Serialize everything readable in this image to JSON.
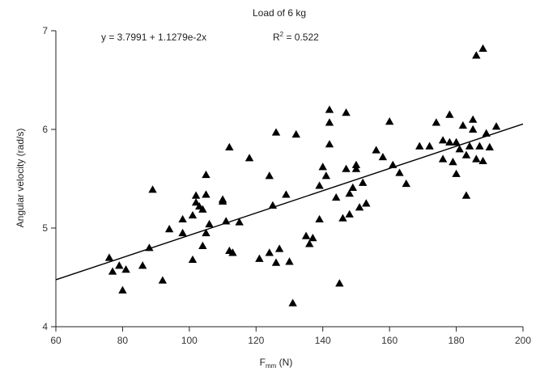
{
  "chart_data": {
    "type": "scatter",
    "title": "Load of 6 kg",
    "equation": "y = 3.7991 + 1.1279e-2x",
    "r2_label": "R",
    "r2_superscript": "2",
    "r2_value": " = 0.522",
    "xlabel_main": "F",
    "xlabel_sub": "mm",
    "xlabel_unit": " (N)",
    "ylabel": "Angular velocity (rad/s)",
    "xlim": [
      60,
      200
    ],
    "ylim": [
      4,
      7
    ],
    "xticks": [
      60,
      80,
      100,
      120,
      140,
      160,
      180,
      200
    ],
    "yticks": [
      4,
      5,
      6,
      7
    ],
    "marker": "triangle",
    "fit": {
      "intercept": 3.7991,
      "slope": 0.011279
    },
    "points": [
      [
        76,
        4.7
      ],
      [
        77,
        4.56
      ],
      [
        79,
        4.62
      ],
      [
        80,
        4.37
      ],
      [
        81,
        4.58
      ],
      [
        86,
        4.62
      ],
      [
        88,
        4.8
      ],
      [
        89,
        5.39
      ],
      [
        92,
        4.47
      ],
      [
        94,
        4.99
      ],
      [
        98,
        4.95
      ],
      [
        98,
        5.09
      ],
      [
        101,
        4.68
      ],
      [
        101,
        5.13
      ],
      [
        102,
        5.26
      ],
      [
        102,
        5.33
      ],
      [
        103,
        5.22
      ],
      [
        104,
        4.82
      ],
      [
        104,
        5.19
      ],
      [
        105,
        5.34
      ],
      [
        105,
        5.54
      ],
      [
        105,
        4.95
      ],
      [
        106,
        5.04
      ],
      [
        110,
        5.29
      ],
      [
        110,
        5.27
      ],
      [
        111,
        5.07
      ],
      [
        112,
        5.82
      ],
      [
        112,
        4.77
      ],
      [
        113,
        4.75
      ],
      [
        115,
        5.06
      ],
      [
        118,
        5.71
      ],
      [
        121,
        4.69
      ],
      [
        124,
        5.53
      ],
      [
        124,
        4.75
      ],
      [
        125,
        5.23
      ],
      [
        126,
        5.97
      ],
      [
        126,
        4.65
      ],
      [
        127,
        4.79
      ],
      [
        129,
        5.34
      ],
      [
        130,
        4.66
      ],
      [
        131,
        4.24
      ],
      [
        132,
        5.95
      ],
      [
        135,
        4.92
      ],
      [
        136,
        4.84
      ],
      [
        137,
        4.9
      ],
      [
        139,
        5.09
      ],
      [
        139,
        5.43
      ],
      [
        140,
        5.62
      ],
      [
        141,
        5.53
      ],
      [
        142,
        5.85
      ],
      [
        142,
        6.07
      ],
      [
        142,
        6.2
      ],
      [
        144,
        5.31
      ],
      [
        145,
        4.44
      ],
      [
        146,
        5.1
      ],
      [
        147,
        6.17
      ],
      [
        147,
        5.6
      ],
      [
        148,
        5.35
      ],
      [
        148,
        5.14
      ],
      [
        149,
        5.41
      ],
      [
        150,
        5.6
      ],
      [
        150,
        5.64
      ],
      [
        151,
        5.21
      ],
      [
        152,
        5.46
      ],
      [
        153,
        5.25
      ],
      [
        156,
        5.79
      ],
      [
        158,
        5.72
      ],
      [
        160,
        6.08
      ],
      [
        161,
        5.64
      ],
      [
        163,
        5.56
      ],
      [
        165,
        5.45
      ],
      [
        169,
        5.83
      ],
      [
        172,
        5.83
      ],
      [
        174,
        6.07
      ],
      [
        176,
        5.7
      ],
      [
        176,
        5.89
      ],
      [
        178,
        6.15
      ],
      [
        178,
        5.87
      ],
      [
        179,
        5.67
      ],
      [
        180,
        5.87
      ],
      [
        180,
        5.55
      ],
      [
        181,
        5.8
      ],
      [
        182,
        6.04
      ],
      [
        183,
        5.33
      ],
      [
        183,
        5.74
      ],
      [
        184,
        5.83
      ],
      [
        185,
        6.0
      ],
      [
        185,
        6.1
      ],
      [
        186,
        5.7
      ],
      [
        186,
        6.75
      ],
      [
        187,
        5.83
      ],
      [
        188,
        5.68
      ],
      [
        188,
        6.82
      ],
      [
        189,
        5.96
      ],
      [
        190,
        5.82
      ],
      [
        192,
        6.03
      ]
    ]
  }
}
